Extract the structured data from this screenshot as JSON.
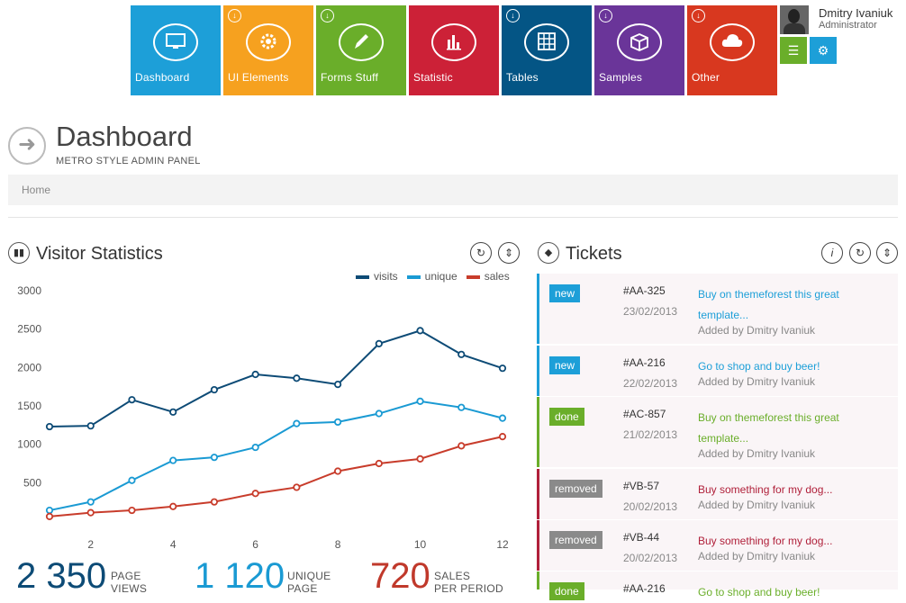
{
  "nav": {
    "tiles": [
      {
        "label": "Dashboard",
        "color": "#1d9fd8",
        "icon": "monitor-icon",
        "arrow": false
      },
      {
        "label": "UI Elements",
        "color": "#f6a11f",
        "icon": "gear-icon",
        "arrow": true
      },
      {
        "label": "Forms Stuff",
        "color": "#6aae2a",
        "icon": "pencil-icon",
        "arrow": true
      },
      {
        "label": "Statistic",
        "color": "#cc2137",
        "icon": "bar-chart-icon",
        "arrow": false
      },
      {
        "label": "Tables",
        "color": "#045585",
        "icon": "table-icon",
        "arrow": true
      },
      {
        "label": "Samples",
        "color": "#6a3599",
        "icon": "box-icon",
        "arrow": true
      },
      {
        "label": "Other",
        "color": "#d8381f",
        "icon": "cloud-icon",
        "arrow": true
      }
    ]
  },
  "user": {
    "name": "Dmitry Ivaniuk",
    "role": "Administrator",
    "menu_color": "#6aae2a",
    "settings_color": "#1d9fd8"
  },
  "page": {
    "title": "Dashboard",
    "subtitle": "METRO STYLE ADMIN PANEL",
    "breadcrumb": "Home"
  },
  "visitor": {
    "title": "Visitor Statistics",
    "stats": [
      {
        "value": "2 350",
        "label1": "PAGE",
        "label2": "VIEWS",
        "color": "#0d4b76"
      },
      {
        "value": "1 120",
        "label1": "UNIQUE",
        "label2": "PAGE",
        "color": "#1a9ad3"
      },
      {
        "value": "720",
        "label1": "SALES",
        "label2": "PER PERIOD",
        "color": "#c0392b"
      }
    ]
  },
  "chart_data": {
    "type": "line",
    "x": [
      1,
      2,
      3,
      4,
      5,
      6,
      7,
      8,
      9,
      10,
      11,
      12
    ],
    "xticks": [
      2,
      4,
      6,
      8,
      10,
      12
    ],
    "yticks": [
      500,
      1000,
      1500,
      2000,
      2500,
      3000
    ],
    "ylim": [
      0,
      3000
    ],
    "xlim": [
      1,
      12
    ],
    "legend_position": "top-right",
    "series": [
      {
        "name": "visits",
        "color": "#0d4b76",
        "values": [
          1230,
          1240,
          1580,
          1420,
          1710,
          1910,
          1860,
          1780,
          2310,
          2480,
          2170,
          1990
        ]
      },
      {
        "name": "unique",
        "color": "#1a9ad3",
        "values": [
          140,
          250,
          530,
          790,
          830,
          960,
          1270,
          1290,
          1400,
          1560,
          1480,
          1340
        ]
      },
      {
        "name": "sales",
        "color": "#c83c2b",
        "values": [
          60,
          110,
          140,
          190,
          250,
          360,
          440,
          650,
          750,
          810,
          980,
          1100
        ]
      }
    ]
  },
  "tickets": {
    "title": "Tickets",
    "items": [
      {
        "status": "new",
        "status_color": "#1d9fd8",
        "bar": "#1d9fd8",
        "id": "#AA-325",
        "date": "23/02/2013",
        "desc": "Buy on themeforest this great template...",
        "desc_color": "#1d9fd8",
        "by": "Added by Dmitry Ivaniuk"
      },
      {
        "status": "new",
        "status_color": "#1d9fd8",
        "bar": "#1d9fd8",
        "id": "#AA-216",
        "date": "22/02/2013",
        "desc": "Go to shop and buy beer!",
        "desc_color": "#1d9fd8",
        "by": "Added by Dmitry Ivaniuk"
      },
      {
        "status": "done",
        "status_color": "#6aae2a",
        "bar": "#6aae2a",
        "id": "#AC-857",
        "date": "21/02/2013",
        "desc": "Buy on themeforest this great template...",
        "desc_color": "#6aae2a",
        "by": "Added by Dmitry Ivaniuk"
      },
      {
        "status": "removed",
        "status_color": "#8a8a8a",
        "bar": "#b0203a",
        "id": "#VB-57",
        "date": "20/02/2013",
        "desc": "Buy something for my dog...",
        "desc_color": "#b0203a",
        "by": "Added by Dmitry Ivaniuk"
      },
      {
        "status": "removed",
        "status_color": "#8a8a8a",
        "bar": "#b0203a",
        "id": "#VB-44",
        "date": "20/02/2013",
        "desc": "Buy something for my dog...",
        "desc_color": "#b0203a",
        "by": "Added by Dmitry Ivaniuk"
      },
      {
        "status": "done",
        "status_color": "#6aae2a",
        "bar": "#6aae2a",
        "id": "#AA-216",
        "date": "",
        "desc": "Go to shop and buy beer!",
        "desc_color": "#6aae2a",
        "by": ""
      }
    ]
  }
}
